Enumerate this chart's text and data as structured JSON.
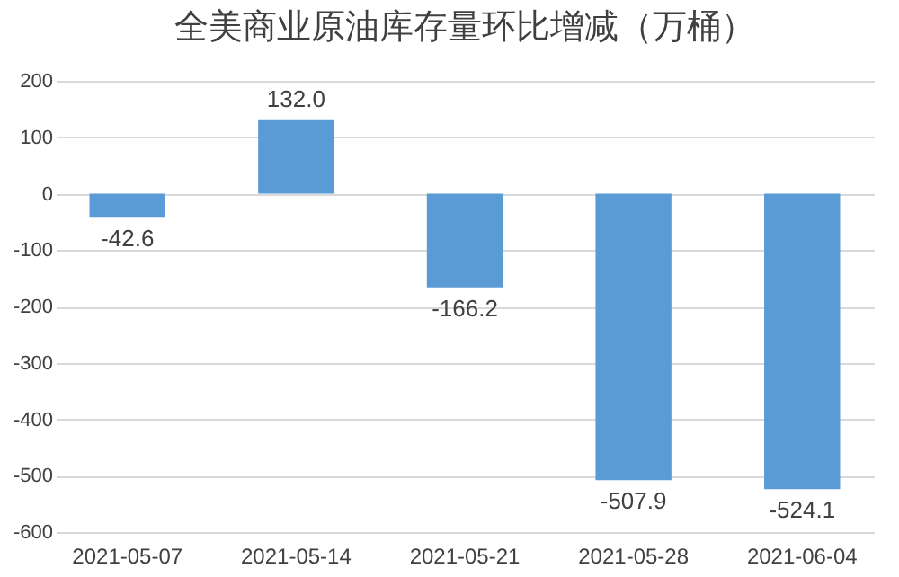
{
  "chart_data": {
    "type": "bar",
    "title": "全美商业原油库存量环比增减（万桶）",
    "categories": [
      "2021-05-07",
      "2021-05-14",
      "2021-05-21",
      "2021-05-28",
      "2021-06-04"
    ],
    "values": [
      -42.6,
      132.0,
      -166.2,
      -507.9,
      -524.1
    ],
    "value_labels": [
      "-42.6",
      "132.0",
      "-166.2",
      "-507.9",
      "-524.1"
    ],
    "color": "#5b9bd5",
    "ylim": [
      -600,
      200
    ],
    "yticks": [
      -600,
      -500,
      -400,
      -300,
      -200,
      -100,
      0,
      100,
      200
    ],
    "grid": "y"
  }
}
